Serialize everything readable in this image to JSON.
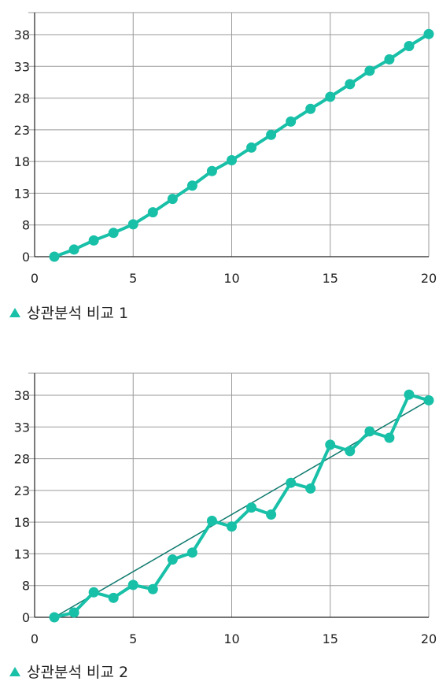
{
  "colors": {
    "series": "#18c0a8",
    "trendline": "#0e7a6e",
    "grid": "#9a9a9a",
    "axis": "#222222"
  },
  "chart_data": [
    {
      "type": "line",
      "title": "상관분석 비교 1",
      "xlabel": "",
      "ylabel": "",
      "xlim": [
        0,
        20
      ],
      "ylim": [
        0,
        41
      ],
      "x_ticks": [
        0,
        5,
        10,
        15,
        20
      ],
      "y_ticks": [
        0,
        8,
        13,
        18,
        23,
        28,
        33,
        38
      ],
      "grid": true,
      "legend": "none",
      "x": [
        1,
        2,
        3,
        4,
        5,
        6,
        7,
        8,
        9,
        10,
        11,
        12,
        13,
        14,
        15,
        16,
        17,
        18,
        19,
        20
      ],
      "series": [
        {
          "values": [
            0,
            1.8,
            4.1,
            6.0,
            8.1,
            10.0,
            12.1,
            14.2,
            16.5,
            18.2,
            20.2,
            22.2,
            24.3,
            26.3,
            28.2,
            30.2,
            32.3,
            34.1,
            36.2,
            38.1
          ]
        }
      ]
    },
    {
      "type": "line",
      "title": "상관분석 비교 2",
      "xlabel": "",
      "ylabel": "",
      "xlim": [
        0,
        20
      ],
      "ylim": [
        0,
        41
      ],
      "x_ticks": [
        0,
        5,
        10,
        15,
        20
      ],
      "y_ticks": [
        0,
        8,
        13,
        18,
        23,
        28,
        33,
        38
      ],
      "grid": true,
      "legend": "none",
      "x": [
        1,
        2,
        3,
        4,
        5,
        6,
        7,
        8,
        9,
        10,
        11,
        12,
        13,
        14,
        15,
        16,
        17,
        18,
        19,
        20
      ],
      "series": [
        {
          "values": [
            0,
            1.2,
            6.3,
            4.9,
            8.1,
            7.1,
            12.1,
            13.2,
            18.2,
            17.3,
            20.3,
            19.2,
            24.2,
            23.3,
            30.2,
            29.2,
            32.3,
            31.3,
            38.1,
            37.2
          ]
        }
      ],
      "trendline": {
        "x": [
          1,
          20
        ],
        "y": [
          0,
          37.2
        ]
      }
    }
  ]
}
